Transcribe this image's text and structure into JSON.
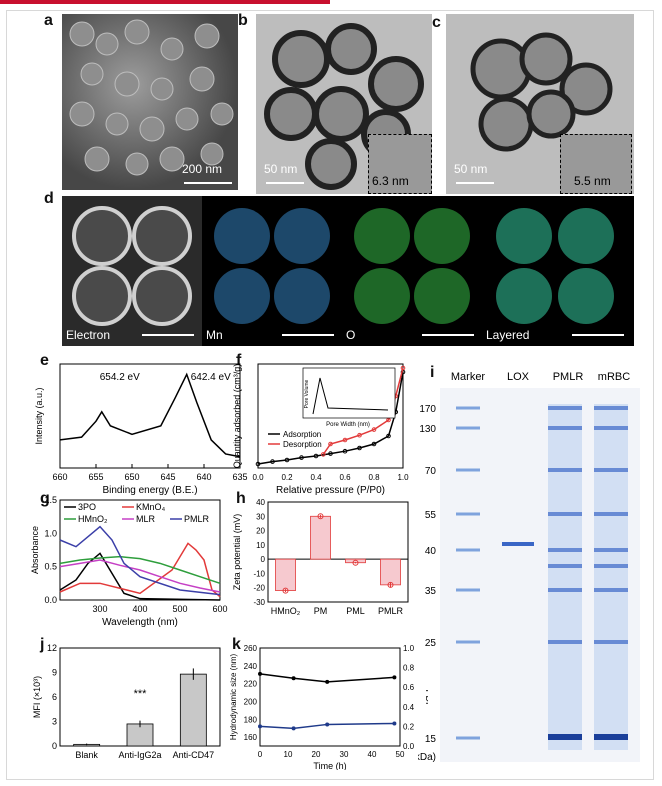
{
  "panels": {
    "a": {
      "label": "a",
      "scale": "200 nm"
    },
    "b": {
      "label": "b",
      "scale": "50 nm",
      "inset": "6.3 nm"
    },
    "c": {
      "label": "c",
      "scale": "50 nm",
      "inset": "5.5 nm"
    },
    "d": {
      "label": "d",
      "maps": [
        "Electron",
        "Mn",
        "O",
        "Layered"
      ]
    },
    "e": {
      "label": "e"
    },
    "f": {
      "label": "f"
    },
    "g": {
      "label": "g"
    },
    "h": {
      "label": "h"
    },
    "i": {
      "label": "i"
    },
    "j": {
      "label": "j"
    },
    "k": {
      "label": "k"
    }
  },
  "colors": {
    "red": "#e23a3a",
    "pink_bar": "#f6c9cf",
    "blue": "#1f3a8a",
    "green": "#2e9e3c",
    "magenta": "#c540c5",
    "purple": "#3b3fa8",
    "gel_blue": "#3a66c6"
  },
  "chart_data": [
    {
      "panel": "e",
      "type": "line",
      "xlabel": "Binding energy (B.E.)",
      "ylabel": "Intensity (a.u.)",
      "xlim": [
        660,
        635
      ],
      "xticks": [
        635,
        640,
        645,
        650,
        655,
        660
      ],
      "annotations": [
        "642.4 eV",
        "654.2 eV"
      ],
      "series": [
        {
          "x": [
            660,
            657,
            655,
            654.2,
            653,
            650,
            646,
            644,
            642.4,
            641,
            639,
            637,
            635
          ],
          "y": [
            0.3,
            0.33,
            0.5,
            0.6,
            0.45,
            0.36,
            0.45,
            0.75,
            1.0,
            0.7,
            0.3,
            0.15,
            0.12
          ]
        }
      ]
    },
    {
      "panel": "f",
      "type": "line",
      "xlabel": "Relative pressure (P/P0)",
      "ylabel": "Quantity adsorbed (cm³/g)",
      "xlim": [
        0.0,
        1.0
      ],
      "xticks": [
        "0.0",
        "0.2",
        "0.4",
        "0.6",
        "0.8",
        "1.0"
      ],
      "legend": [
        "Adsorption",
        "Desorption"
      ],
      "inset": {
        "xlabel": "Pore Width (nm)",
        "ylabel": "Pore Volume"
      },
      "series": [
        {
          "name": "Adsorption",
          "x": [
            0,
            0.1,
            0.2,
            0.3,
            0.4,
            0.5,
            0.6,
            0.7,
            0.8,
            0.9,
            0.95,
            1.0
          ],
          "y": [
            5,
            8,
            10,
            13,
            15,
            18,
            21,
            25,
            30,
            40,
            70,
            120
          ]
        },
        {
          "name": "Desorption",
          "x": [
            0.45,
            0.5,
            0.6,
            0.7,
            0.8,
            0.9,
            0.95,
            1.0
          ],
          "y": [
            17,
            30,
            35,
            41,
            48,
            60,
            90,
            125
          ]
        }
      ]
    },
    {
      "panel": "g",
      "type": "line",
      "xlabel": "Wavelength (nm)",
      "ylabel": "Absorbance",
      "xlim": [
        200,
        600
      ],
      "ylim": [
        0,
        1.5
      ],
      "xticks": [
        300,
        400,
        500,
        600
      ],
      "yticks": [
        "0.0",
        "0.5",
        "1.0",
        "1.5"
      ],
      "legend": [
        "3PO",
        "KMnO₄",
        "HMnO₂",
        "MLR",
        "PMLR"
      ],
      "series": [
        {
          "name": "3PO",
          "x": [
            200,
            240,
            270,
            300,
            330,
            360,
            400,
            600
          ],
          "y": [
            0.15,
            0.3,
            0.55,
            0.7,
            0.4,
            0.1,
            0.02,
            0.0
          ]
        },
        {
          "name": "KMnO₄",
          "x": [
            200,
            250,
            300,
            400,
            480,
            520,
            540,
            560,
            580,
            600
          ],
          "y": [
            0.12,
            0.25,
            0.25,
            0.1,
            0.45,
            0.85,
            0.75,
            0.6,
            0.15,
            0.05
          ]
        },
        {
          "name": "HMnO₂",
          "x": [
            200,
            250,
            300,
            350,
            400,
            450,
            500,
            550,
            600
          ],
          "y": [
            0.55,
            0.6,
            0.63,
            0.65,
            0.62,
            0.55,
            0.45,
            0.35,
            0.25
          ]
        },
        {
          "name": "MLR",
          "x": [
            200,
            250,
            300,
            350,
            400,
            450,
            500,
            550,
            600
          ],
          "y": [
            0.5,
            0.55,
            0.6,
            0.52,
            0.45,
            0.35,
            0.25,
            0.18,
            0.12
          ]
        },
        {
          "name": "PMLR",
          "x": [
            200,
            240,
            270,
            300,
            330,
            360,
            400,
            500,
            600
          ],
          "y": [
            0.9,
            0.8,
            0.95,
            1.1,
            0.9,
            0.55,
            0.35,
            0.15,
            0.08
          ]
        }
      ]
    },
    {
      "panel": "h",
      "type": "bar",
      "ylabel": "Zeta potential (mV)",
      "ylim": [
        -30,
        40
      ],
      "yticks": [
        -30,
        -20,
        -10,
        0,
        10,
        20,
        30,
        40
      ],
      "categories": [
        "HMnO₂",
        "PM",
        "PML",
        "PMLR"
      ],
      "values": [
        -22,
        30,
        -2.5,
        -18
      ],
      "errors": [
        1,
        1,
        0.5,
        1.5
      ]
    },
    {
      "panel": "i",
      "type": "table",
      "columns": [
        "Marker",
        "LOX",
        "PMLR",
        "mRBC"
      ],
      "markers_kda": [
        170,
        130,
        70,
        55,
        40,
        35,
        25,
        15
      ],
      "unit": "(kDa)"
    },
    {
      "panel": "j",
      "type": "bar",
      "ylabel": "MFI (×10³)",
      "ylim": [
        0,
        12
      ],
      "yticks": [
        0,
        3,
        6,
        9,
        12
      ],
      "categories": [
        "Blank",
        "Anti-IgG2a",
        "Anti-CD47"
      ],
      "values": [
        0.2,
        2.7,
        8.8
      ],
      "errors": [
        0.1,
        0.4,
        0.7
      ],
      "annotations": [
        "***"
      ]
    },
    {
      "panel": "k",
      "type": "line",
      "xlabel": "Time (h)",
      "ylabel": "Hydrodynamic size (nm)",
      "ylabel_right": "PDI",
      "xlim": [
        0,
        50
      ],
      "xticks": [
        0,
        10,
        20,
        30,
        40,
        50
      ],
      "ylim": [
        150,
        260
      ],
      "yticks": [
        160,
        180,
        200,
        220,
        240,
        260
      ],
      "ylim_right": [
        0.0,
        1.0
      ],
      "yticks_right": [
        "0.0",
        "0.2",
        "0.4",
        "0.6",
        "0.8",
        "1.0"
      ],
      "series": [
        {
          "name": "Hydrodynamic size",
          "x": [
            0,
            12,
            24,
            48
          ],
          "y": [
            231,
            226,
            222,
            227
          ]
        },
        {
          "name": "PDI",
          "x": [
            0,
            12,
            24,
            48
          ],
          "y": [
            0.2,
            0.18,
            0.22,
            0.23
          ],
          "axis": "right"
        }
      ]
    }
  ]
}
